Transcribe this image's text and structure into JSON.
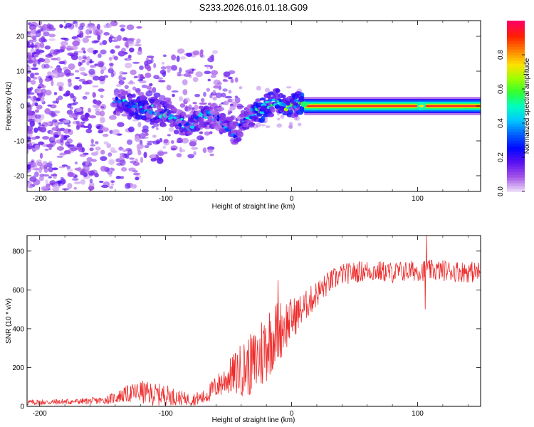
{
  "title": "S233.2026.016.01.18.G09",
  "chart_data": [
    {
      "type": "heatmap",
      "xlabel": "Height of straight line (km)",
      "ylabel": "Frequency (Hz)",
      "xlim": [
        -210,
        150
      ],
      "ylim": [
        -24.5,
        24.5
      ],
      "xticks": [
        -200,
        -100,
        0,
        100
      ],
      "yticks": [
        -20,
        -10,
        0,
        10,
        20
      ],
      "colorbar": {
        "label": "Normalized spectral amplitude",
        "range": [
          0,
          1
        ],
        "ticks": [
          0.0,
          0.2,
          0.4,
          0.6,
          0.8
        ],
        "colors": [
          "#e6d2f6",
          "#a050e8",
          "#5a10f0",
          "#0008ff",
          "#0060ff",
          "#00c8ff",
          "#00ffc0",
          "#30ff30",
          "#a0ff00",
          "#ffe000",
          "#ff8000",
          "#ff2000",
          "#ff0060"
        ]
      },
      "ridge": [
        {
          "x": -140,
          "f": 1.0,
          "a": 0.35
        },
        {
          "x": -130,
          "f": 0.5,
          "a": 0.45
        },
        {
          "x": -120,
          "f": -0.5,
          "a": 0.5
        },
        {
          "x": -110,
          "f": -1.0,
          "a": 0.45
        },
        {
          "x": -100,
          "f": -2.5,
          "a": 0.45
        },
        {
          "x": -90,
          "f": -4.5,
          "a": 0.4
        },
        {
          "x": -80,
          "f": -5.5,
          "a": 0.4
        },
        {
          "x": -70,
          "f": -2.0,
          "a": 0.4
        },
        {
          "x": -60,
          "f": -3.0,
          "a": 0.35
        },
        {
          "x": -50,
          "f": -6.0,
          "a": 0.35
        },
        {
          "x": -45,
          "f": -8.0,
          "a": 0.3
        },
        {
          "x": -38,
          "f": -4.5,
          "a": 0.35
        },
        {
          "x": -30,
          "f": -1.5,
          "a": 0.5
        },
        {
          "x": -25,
          "f": -1.5,
          "a": 0.6
        },
        {
          "x": -15,
          "f": 1.0,
          "a": 0.55
        },
        {
          "x": -10,
          "f": 2.0,
          "a": 0.5
        },
        {
          "x": -5,
          "f": 0.0,
          "a": 0.6
        },
        {
          "x": 0,
          "f": 0.0,
          "a": 0.55
        },
        {
          "x": 5,
          "f": 1.0,
          "a": 0.5
        },
        {
          "x": 10,
          "f": 0.0,
          "a": 0.9
        },
        {
          "x": 150,
          "f": 0.0,
          "a": 0.9
        }
      ],
      "highlight": {
        "x": 103,
        "f": 0.0,
        "a": 0.5
      }
    },
    {
      "type": "line",
      "xlabel": "Height of straight line (km)",
      "ylabel": "SNR (10 * v/v)",
      "xlim": [
        -210,
        150
      ],
      "ylim": [
        0,
        880
      ],
      "xticks": [
        -200,
        -100,
        0,
        100
      ],
      "yticks": [
        0,
        200,
        400,
        600,
        800
      ],
      "color": "#ee2a2a",
      "series": [
        {
          "name": "SNR",
          "x": [
            -210,
            -190,
            -170,
            -150,
            -140,
            -130,
            -120,
            -110,
            -100,
            -90,
            -80,
            -70,
            -60,
            -50,
            -40,
            -30,
            -25,
            -20,
            -15,
            -10,
            -5,
            0,
            10,
            20,
            30,
            40,
            60,
            80,
            100,
            120,
            150
          ],
          "baseline": [
            20,
            22,
            25,
            30,
            45,
            65,
            75,
            60,
            60,
            45,
            35,
            45,
            100,
            150,
            190,
            220,
            260,
            320,
            360,
            390,
            420,
            450,
            510,
            580,
            640,
            680,
            700,
            690,
            700,
            700,
            690
          ],
          "spread": [
            15,
            15,
            15,
            20,
            30,
            45,
            60,
            60,
            55,
            40,
            30,
            40,
            60,
            90,
            140,
            170,
            200,
            200,
            180,
            160,
            140,
            110,
            80,
            70,
            60,
            55,
            55,
            55,
            55,
            55,
            55
          ]
        }
      ],
      "spikes": [
        {
          "x": 107,
          "y": 880
        },
        {
          "x": 106,
          "y": 500
        },
        {
          "x": -11,
          "y": 650
        },
        {
          "x": -44,
          "y": 130
        }
      ]
    }
  ]
}
